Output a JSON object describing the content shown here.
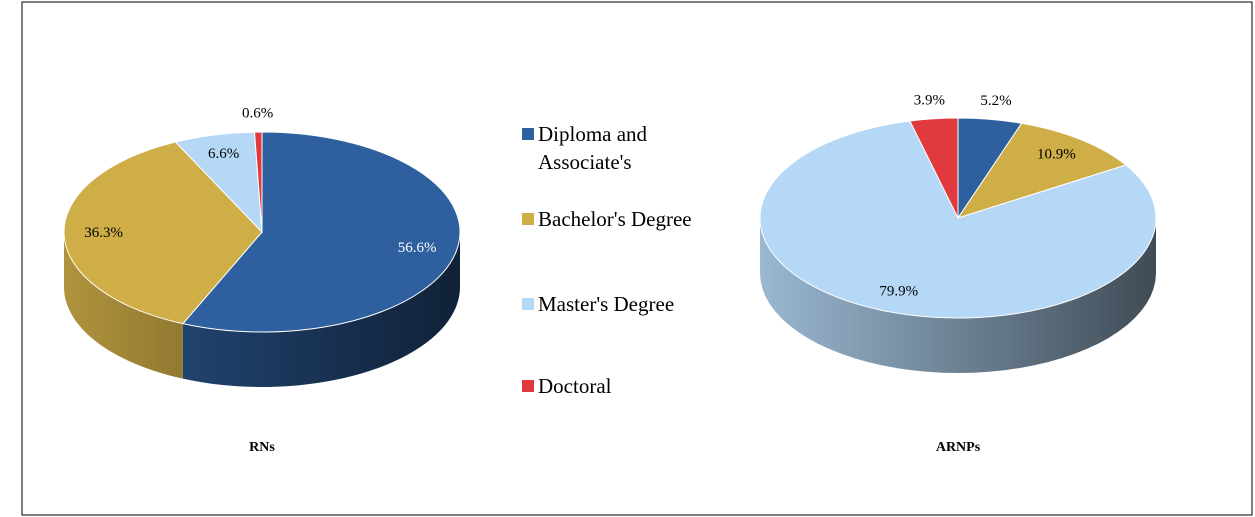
{
  "chart_data": {
    "type": "pie",
    "categories": [
      "Diploma and Associate's",
      "Bachelor's Degree",
      "Master's Degree",
      "Doctoral"
    ],
    "colors": [
      "#2e5f9e",
      "#cfad47",
      "#b5d8f7",
      "#e0393e"
    ],
    "series": [
      {
        "name": "RNs",
        "values": [
          56.6,
          36.3,
          6.6,
          0.6
        ],
        "value_labels": [
          "56.6%",
          "36.3%",
          "6.6%",
          "0.6%"
        ]
      },
      {
        "name": "ARNPs",
        "values": [
          5.2,
          10.9,
          79.9,
          3.9
        ],
        "value_labels": [
          "5.2%",
          "10.9%",
          "79.9%",
          "3.9%"
        ]
      }
    ]
  }
}
